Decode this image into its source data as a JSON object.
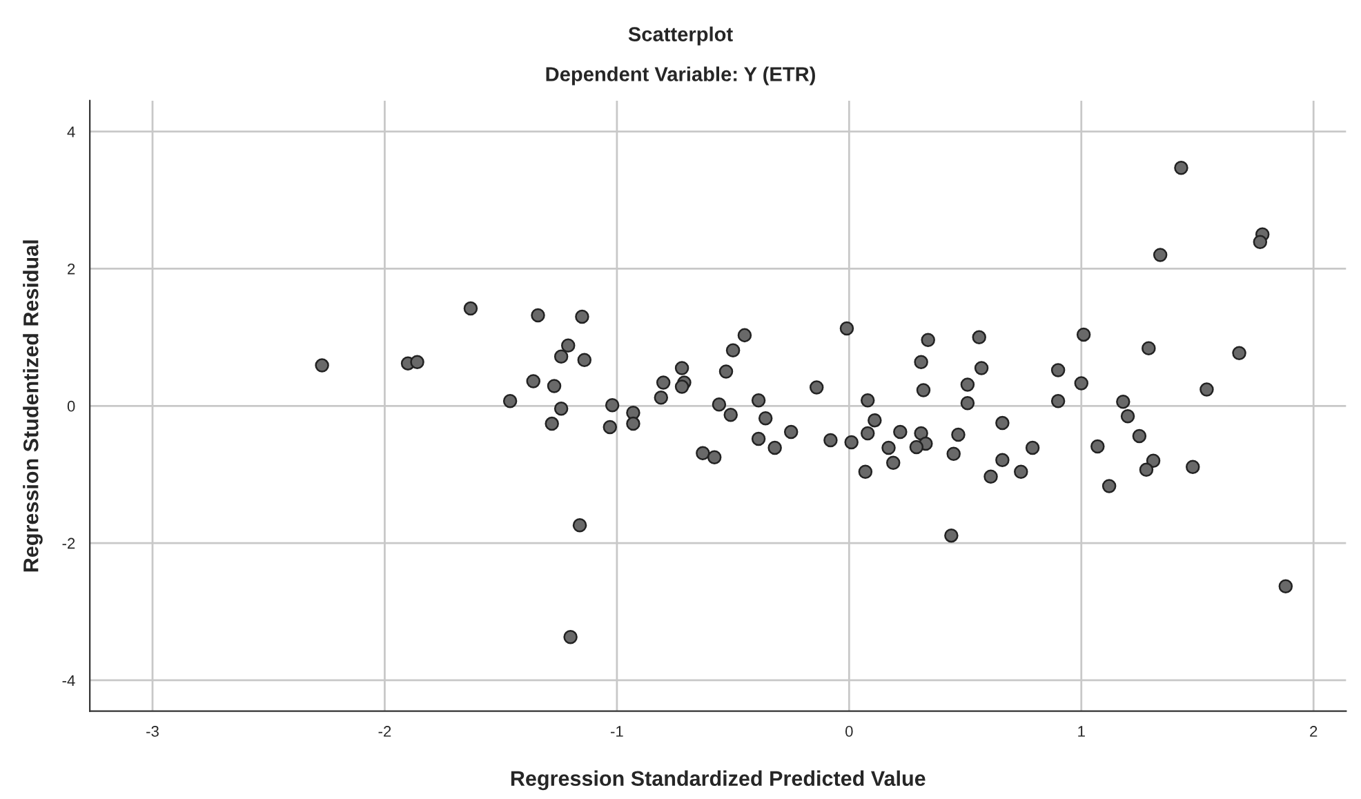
{
  "chart_data": {
    "type": "scatter",
    "title": "Scatterplot",
    "subtitle": "Dependent Variable: Y (ETR)",
    "xlabel": "Regression Standardized Predicted Value",
    "ylabel": "Regression Studentized Residual",
    "xlim": [
      -3.27,
      2.14
    ],
    "ylim": [
      -4.45,
      4.45
    ],
    "xticks": [
      -3,
      -2,
      -1,
      0,
      1,
      2
    ],
    "yticks": [
      -4,
      -2,
      0,
      2,
      4
    ],
    "grid": true,
    "marker": "circle",
    "series": [
      {
        "color": "#696969",
        "x": [
          -2.27,
          -1.9,
          -1.86,
          -1.63,
          -1.34,
          -1.15,
          -1.21,
          -1.24,
          -1.14,
          -1.36,
          -1.27,
          -1.46,
          -1.24,
          -1.28,
          -1.02,
          -1.03,
          -0.93,
          -0.93,
          -0.81,
          -0.8,
          -0.72,
          -0.71,
          -0.72,
          -1.16,
          -1.2,
          -0.45,
          -0.5,
          -0.53,
          -0.56,
          -0.51,
          -0.63,
          -0.58,
          -0.39,
          -0.36,
          -0.39,
          -0.32,
          -0.25,
          -0.14,
          -0.08,
          -0.01,
          0.01,
          0.08,
          0.11,
          0.08,
          0.07,
          0.17,
          0.19,
          0.22,
          0.31,
          0.34,
          0.32,
          0.31,
          0.33,
          0.29,
          0.47,
          0.45,
          0.44,
          0.56,
          0.57,
          0.51,
          0.51,
          0.66,
          0.66,
          0.61,
          0.74,
          0.79,
          0.9,
          0.9,
          1.01,
          1.0,
          1.07,
          1.12,
          1.18,
          1.2,
          1.25,
          1.29,
          1.31,
          1.28,
          1.34,
          1.43,
          1.48,
          1.54,
          1.68,
          1.78,
          1.77,
          1.88
        ],
        "values": [
          0.59,
          0.62,
          0.64,
          1.42,
          1.32,
          1.3,
          0.88,
          0.72,
          0.67,
          0.36,
          0.29,
          0.07,
          -0.04,
          -0.26,
          0.01,
          -0.31,
          -0.1,
          -0.26,
          0.12,
          0.34,
          0.55,
          0.34,
          0.28,
          -1.74,
          -3.37,
          1.03,
          0.81,
          0.5,
          0.02,
          -0.13,
          -0.69,
          -0.75,
          0.08,
          -0.18,
          -0.48,
          -0.61,
          -0.38,
          0.27,
          -0.5,
          1.13,
          -0.53,
          0.08,
          -0.21,
          -0.4,
          -0.96,
          -0.61,
          -0.83,
          -0.38,
          0.64,
          0.96,
          0.23,
          -0.4,
          -0.55,
          -0.6,
          -0.42,
          -0.7,
          -1.89,
          1.0,
          0.55,
          0.31,
          0.04,
          -0.25,
          -0.79,
          -1.03,
          -0.96,
          -0.61,
          0.52,
          0.07,
          1.04,
          0.33,
          -0.59,
          -1.17,
          0.06,
          -0.15,
          -0.44,
          0.84,
          -0.8,
          -0.93,
          2.2,
          3.47,
          -0.89,
          0.24,
          0.77,
          2.5,
          2.39,
          -2.63
        ]
      }
    ]
  }
}
